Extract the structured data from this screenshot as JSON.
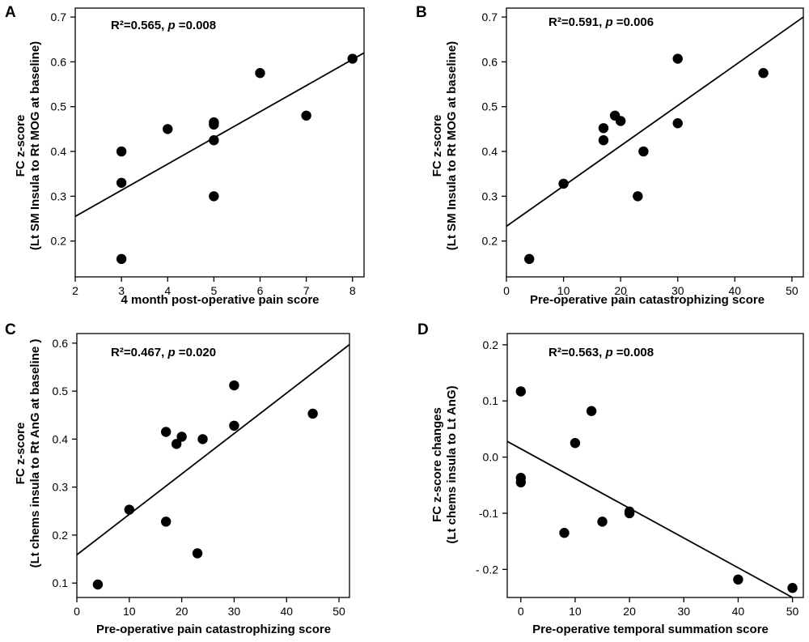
{
  "chart_data": [
    {
      "type": "scatter",
      "panel": "A",
      "stat_r2": "R²=0.565, ",
      "stat_p_label": "p",
      "stat_p_value": " =0.008",
      "xlabel": "4 month post-operative pain score",
      "ylabel_line1": "FC z-score",
      "ylabel_line2": "(Lt SM Insula to Rt MOG at baseline)",
      "xlim": [
        2,
        8.25
      ],
      "ylim": [
        0.12,
        0.72
      ],
      "xticks": [
        2,
        3,
        4,
        5,
        6,
        7,
        8
      ],
      "yticks": [
        0.2,
        0.3,
        0.4,
        0.5,
        0.6,
        0.7
      ],
      "ytick_labels": [
        "0.2",
        "0.3",
        "0.4",
        "0.5",
        "0.6",
        "0.7"
      ],
      "points": [
        [
          3,
          0.16
        ],
        [
          3,
          0.33
        ],
        [
          3,
          0.4
        ],
        [
          4,
          0.45
        ],
        [
          5,
          0.3
        ],
        [
          5,
          0.425
        ],
        [
          5,
          0.46
        ],
        [
          5,
          0.465
        ],
        [
          6,
          0.575
        ],
        [
          7,
          0.48
        ],
        [
          8,
          0.607
        ]
      ],
      "fit_line": [
        [
          2,
          0.255
        ],
        [
          8.25,
          0.62
        ]
      ]
    },
    {
      "type": "scatter",
      "panel": "B",
      "stat_r2": "R²=0.591, ",
      "stat_p_label": "p",
      "stat_p_value": " =0.006",
      "xlabel": "Pre-operative pain catastrophizing score",
      "ylabel_line1": "FC z-score",
      "ylabel_line2": "(Lt SM Insula to Rt MOG at baseline)",
      "xlim": [
        0,
        52
      ],
      "ylim": [
        0.12,
        0.72
      ],
      "xticks": [
        0,
        10,
        20,
        30,
        40,
        50
      ],
      "yticks": [
        0.2,
        0.3,
        0.4,
        0.5,
        0.6,
        0.7
      ],
      "ytick_labels": [
        "0.2",
        "0.3",
        "0.4",
        "0.5",
        "0.6",
        "0.7"
      ],
      "points": [
        [
          4,
          0.16
        ],
        [
          10,
          0.328
        ],
        [
          17,
          0.425
        ],
        [
          17,
          0.452
        ],
        [
          19,
          0.48
        ],
        [
          20,
          0.468
        ],
        [
          23,
          0.3
        ],
        [
          24,
          0.4
        ],
        [
          30,
          0.607
        ],
        [
          30,
          0.463
        ],
        [
          45,
          0.575
        ]
      ],
      "fit_line": [
        [
          0,
          0.233
        ],
        [
          52,
          0.7
        ]
      ]
    },
    {
      "type": "scatter",
      "panel": "C",
      "stat_r2": "R²=0.467, ",
      "stat_p_label": "p",
      "stat_p_value": " =0.020",
      "xlabel": "Pre-operative pain catastrophizing score",
      "ylabel_line1": "FC z-score",
      "ylabel_line2": "(Lt chems insula to Rt AnG at baseline )",
      "xlim": [
        0,
        52
      ],
      "ylim": [
        0.07,
        0.62
      ],
      "xticks": [
        0,
        10,
        20,
        30,
        40,
        50
      ],
      "yticks": [
        0.1,
        0.2,
        0.3,
        0.4,
        0.5,
        0.6
      ],
      "ytick_labels": [
        "0.1",
        "0.2",
        "0.3",
        "0.4",
        "0.5",
        "0.6"
      ],
      "points": [
        [
          4,
          0.097
        ],
        [
          10,
          0.253
        ],
        [
          17,
          0.228
        ],
        [
          17,
          0.415
        ],
        [
          19,
          0.39
        ],
        [
          20,
          0.405
        ],
        [
          23,
          0.162
        ],
        [
          24,
          0.4
        ],
        [
          30,
          0.512
        ],
        [
          30,
          0.428
        ],
        [
          45,
          0.453
        ]
      ],
      "fit_line": [
        [
          0,
          0.159
        ],
        [
          52,
          0.597
        ]
      ]
    },
    {
      "type": "scatter",
      "panel": "D",
      "stat_r2": "R²=0.563, ",
      "stat_p_label": "p",
      "stat_p_value": " =0.008",
      "xlabel": "Pre-operative temporal summation score",
      "ylabel_line1": "FC z-score changes",
      "ylabel_line2": "(Lt chems insula to Lt AnG)",
      "xlim": [
        -2.5,
        52
      ],
      "ylim": [
        -0.25,
        0.22
      ],
      "xticks": [
        0,
        10,
        20,
        30,
        40,
        50
      ],
      "yticks": [
        0.2,
        0.1,
        0.0,
        -0.1,
        -0.2
      ],
      "ytick_labels": [
        "0.2",
        "0.1",
        "0.0",
        "-0.1",
        "- 0.2"
      ],
      "points": [
        [
          0,
          0.117
        ],
        [
          0,
          -0.037
        ],
        [
          0,
          -0.045
        ],
        [
          8,
          -0.135
        ],
        [
          10,
          0.025
        ],
        [
          13,
          0.082
        ],
        [
          15,
          -0.115
        ],
        [
          20,
          -0.097
        ],
        [
          20,
          -0.1
        ],
        [
          40,
          -0.218
        ],
        [
          50,
          -0.233
        ]
      ],
      "fit_line": [
        [
          -2.5,
          0.028
        ],
        [
          50,
          -0.25
        ]
      ]
    }
  ]
}
